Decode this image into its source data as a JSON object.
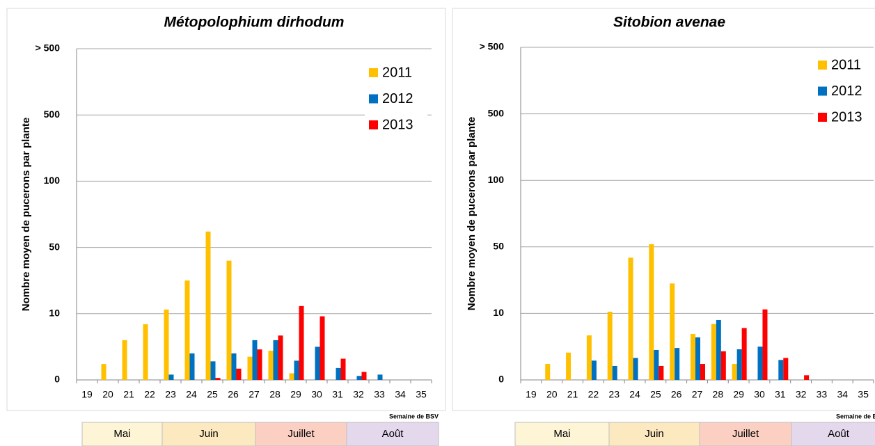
{
  "chart_data": [
    {
      "type": "bar",
      "title": "Métopolophium dirhodum",
      "y_label": "Nombre moyen de pucerons par plante",
      "x_label": "Semaine de BSV",
      "y_scale": "piecewise",
      "grid": true,
      "legend": "upper right",
      "categories": [
        "19",
        "20",
        "21",
        "22",
        "23",
        "24",
        "25",
        "26",
        "27",
        "28",
        "29",
        "30",
        "31",
        "32",
        "33",
        "34",
        "35"
      ],
      "series": [
        {
          "name": "2011",
          "color": "#ffc000",
          "values": [
            0,
            2.4,
            6,
            8.4,
            12.5,
            30,
            62,
            42,
            3.5,
            4.4,
            1,
            0,
            0,
            0,
            0,
            0,
            0
          ]
        },
        {
          "name": "2012",
          "color": "#0070c0",
          "values": [
            0,
            0,
            0,
            0,
            0.8,
            4,
            2.8,
            4,
            6,
            6,
            2.9,
            5,
            1.8,
            0.6,
            0.8,
            0,
            0
          ]
        },
        {
          "name": "2013",
          "color": "#ff0000",
          "values": [
            0,
            0,
            0,
            0,
            0,
            0,
            0.3,
            1.7,
            4.6,
            6.7,
            14.6,
            9.6,
            3.2,
            1.2,
            0,
            0,
            0
          ]
        }
      ],
      "ylim": [
        0,
        1000
      ],
      "yticks": [
        0,
        10,
        50,
        100,
        500,
        {
          "value": 1000,
          "label": "> 500"
        }
      ],
      "months": [
        {
          "name": "Mai",
          "color": "#fdf5d6"
        },
        {
          "name": "Juin",
          "color": "#fde9c0"
        },
        {
          "name": "Juillet",
          "color": "#fbd0c2"
        },
        {
          "name": "Août",
          "color": "#e4d8ec"
        }
      ]
    },
    {
      "type": "bar",
      "title": "Sitobion avenae",
      "y_label": "Nombre moyen de pucerons par plante",
      "x_label": "Semaine de BSV",
      "y_scale": "piecewise",
      "grid": true,
      "legend": "upper right",
      "categories": [
        "19",
        "20",
        "21",
        "22",
        "23",
        "24",
        "25",
        "26",
        "27",
        "28",
        "29",
        "30",
        "31",
        "32",
        "33",
        "34",
        "35"
      ],
      "series": [
        {
          "name": "2011",
          "color": "#ffc000",
          "values": [
            0,
            2.4,
            4.1,
            6.7,
            11,
            43.5,
            52,
            28,
            6.9,
            8.4,
            2.4,
            0,
            0,
            0,
            0,
            0,
            0
          ]
        },
        {
          "name": "2012",
          "color": "#0070c0",
          "values": [
            0,
            0,
            0,
            2.9,
            2.1,
            3.3,
            4.5,
            4.8,
            6.4,
            9,
            4.6,
            5,
            3,
            0,
            0,
            0,
            0
          ]
        },
        {
          "name": "2013",
          "color": "#ff0000",
          "values": [
            0,
            0,
            0,
            0,
            0,
            0,
            2.1,
            0,
            2.4,
            4.3,
            7.8,
            12.4,
            3.3,
            0.7,
            0,
            0,
            0
          ]
        }
      ],
      "ylim": [
        0,
        1000
      ],
      "yticks": [
        0,
        10,
        50,
        100,
        500,
        {
          "value": 1000,
          "label": "> 500"
        }
      ],
      "months": [
        {
          "name": "Mai",
          "color": "#fdf5d6"
        },
        {
          "name": "Juin",
          "color": "#fde9c0"
        },
        {
          "name": "Juillet",
          "color": "#fbd0c2"
        },
        {
          "name": "Août",
          "color": "#e4d8ec"
        }
      ]
    }
  ]
}
